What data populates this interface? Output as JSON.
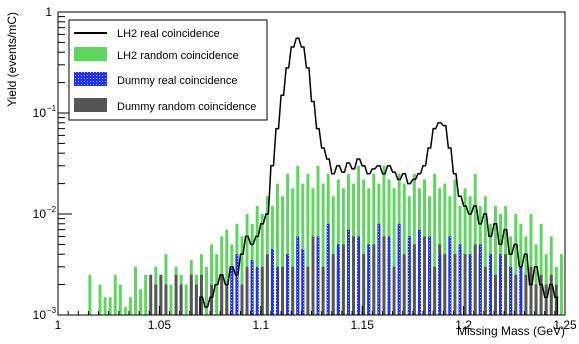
{
  "chart_data": {
    "type": "histogram",
    "xlabel": "Missing Mass (GeV)",
    "ylabel": "Yield (events/mC)",
    "xlim": [
      1.0,
      1.25
    ],
    "ylim": [
      0.001,
      1
    ],
    "yscale": "log",
    "bin_width": 0.00125,
    "x_ticks": [
      {
        "value": 1.0,
        "label": "1"
      },
      {
        "value": 1.05,
        "label": "1.05"
      },
      {
        "value": 1.1,
        "label": "1.1"
      },
      {
        "value": 1.15,
        "label": "1.15"
      },
      {
        "value": 1.2,
        "label": "1.2"
      },
      {
        "value": 1.25,
        "label": "1.25"
      }
    ],
    "y_ticks": [
      {
        "value": 0.001,
        "base": "10",
        "exp": "−3"
      },
      {
        "value": 0.01,
        "base": "10",
        "exp": "−2"
      },
      {
        "value": 0.1,
        "base": "10",
        "exp": "−1"
      },
      {
        "value": 1,
        "base": "1",
        "exp": ""
      }
    ],
    "legend": {
      "position": "top-left",
      "entries": [
        {
          "label": "LH2 real coincidence",
          "series": "lh2_real"
        },
        {
          "label": "LH2 random coincidence",
          "series": "lh2_random"
        },
        {
          "label": "Dummy real coincidence",
          "series": "dummy_real"
        },
        {
          "label": "Dummy random coincidence",
          "series": "dummy_random"
        }
      ]
    },
    "colors": {
      "lh2_random": "#5cd65c",
      "dummy_real": "#1f2fff",
      "dummy_random": "#555555",
      "lh2_real": "#000000"
    },
    "series": [
      {
        "name": "LH2 random coincidence",
        "key": "lh2_random",
        "style": "filled",
        "points": [
          [
            1.015,
            0.0025
          ],
          [
            1.02,
            0.002
          ],
          [
            1.0225,
            0.0015
          ],
          [
            1.025,
            0.0015
          ],
          [
            1.0275,
            0.0025
          ],
          [
            1.03,
            0.002
          ],
          [
            1.0325,
            0.0012
          ],
          [
            1.035,
            0.0015
          ],
          [
            1.0375,
            0.003
          ],
          [
            1.04,
            0.0018
          ],
          [
            1.0425,
            0.0025
          ],
          [
            1.045,
            0.0015
          ],
          [
            1.0475,
            0.003
          ],
          [
            1.05,
            0.0025
          ],
          [
            1.0525,
            0.004
          ],
          [
            1.055,
            0.002
          ],
          [
            1.0575,
            0.003
          ],
          [
            1.06,
            0.0025
          ],
          [
            1.0625,
            0.002
          ],
          [
            1.065,
            0.0035
          ],
          [
            1.0675,
            0.0025
          ],
          [
            1.07,
            0.004
          ],
          [
            1.0725,
            0.003
          ],
          [
            1.075,
            0.005
          ],
          [
            1.0775,
            0.004
          ],
          [
            1.08,
            0.006
          ],
          [
            1.0825,
            0.007
          ],
          [
            1.085,
            0.005
          ],
          [
            1.0875,
            0.008
          ],
          [
            1.09,
            0.006
          ],
          [
            1.0925,
            0.01
          ],
          [
            1.095,
            0.008
          ],
          [
            1.0975,
            0.012
          ],
          [
            1.1,
            0.01
          ],
          [
            1.1025,
            0.015
          ],
          [
            1.105,
            0.012
          ],
          [
            1.1075,
            0.02
          ],
          [
            1.11,
            0.015
          ],
          [
            1.1125,
            0.025
          ],
          [
            1.115,
            0.018
          ],
          [
            1.1175,
            0.03
          ],
          [
            1.12,
            0.02
          ],
          [
            1.1225,
            0.025
          ],
          [
            1.125,
            0.018
          ],
          [
            1.1275,
            0.03
          ],
          [
            1.13,
            0.02
          ],
          [
            1.1325,
            0.025
          ],
          [
            1.135,
            0.015
          ],
          [
            1.1375,
            0.022
          ],
          [
            1.14,
            0.018
          ],
          [
            1.1425,
            0.025
          ],
          [
            1.145,
            0.02
          ],
          [
            1.1475,
            0.03
          ],
          [
            1.15,
            0.022
          ],
          [
            1.1525,
            0.018
          ],
          [
            1.155,
            0.025
          ],
          [
            1.1575,
            0.02
          ],
          [
            1.16,
            0.03
          ],
          [
            1.1625,
            0.022
          ],
          [
            1.165,
            0.018
          ],
          [
            1.1675,
            0.025
          ],
          [
            1.17,
            0.02
          ],
          [
            1.1725,
            0.015
          ],
          [
            1.175,
            0.025
          ],
          [
            1.1775,
            0.018
          ],
          [
            1.18,
            0.022
          ],
          [
            1.1825,
            0.015
          ],
          [
            1.185,
            0.025
          ],
          [
            1.1875,
            0.018
          ],
          [
            1.19,
            0.02
          ],
          [
            1.1925,
            0.015
          ],
          [
            1.195,
            0.022
          ],
          [
            1.1975,
            0.012
          ],
          [
            1.2,
            0.018
          ],
          [
            1.2025,
            0.015
          ],
          [
            1.205,
            0.025
          ],
          [
            1.2075,
            0.012
          ],
          [
            1.21,
            0.015
          ],
          [
            1.2125,
            0.008
          ],
          [
            1.215,
            0.012
          ],
          [
            1.2175,
            0.01
          ],
          [
            1.22,
            0.012
          ],
          [
            1.2225,
            0.006
          ],
          [
            1.225,
            0.01
          ],
          [
            1.2275,
            0.008
          ],
          [
            1.23,
            0.006
          ],
          [
            1.2325,
            0.01
          ],
          [
            1.235,
            0.005
          ],
          [
            1.2375,
            0.008
          ],
          [
            1.24,
            0.004
          ],
          [
            1.2425,
            0.006
          ],
          [
            1.245,
            0.003
          ],
          [
            1.2475,
            0.004
          ]
        ]
      },
      {
        "name": "Dummy random coincidence",
        "key": "dummy_random",
        "style": "filled",
        "points": [
          [
            1.045,
            0.0025
          ],
          [
            1.0475,
            0.002
          ],
          [
            1.05,
            0.0025
          ],
          [
            1.0525,
            0.002
          ],
          [
            1.0575,
            0.0025
          ],
          [
            1.06,
            0.002
          ],
          [
            1.065,
            0.0025
          ],
          [
            1.0675,
            0.002
          ],
          [
            1.07,
            0.0025
          ],
          [
            1.075,
            0.002
          ],
          [
            1.08,
            0.0025
          ],
          [
            1.0825,
            0.002
          ],
          [
            1.085,
            0.003
          ],
          [
            1.0875,
            0.0025
          ],
          [
            1.09,
            0.002
          ],
          [
            1.0925,
            0.003
          ],
          [
            1.095,
            0.0025
          ],
          [
            1.1,
            0.003
          ],
          [
            1.1025,
            0.004
          ],
          [
            1.105,
            0.003
          ],
          [
            1.1075,
            0.0025
          ],
          [
            1.11,
            0.003
          ],
          [
            1.1125,
            0.004
          ],
          [
            1.115,
            0.003
          ],
          [
            1.1175,
            0.005
          ],
          [
            1.12,
            0.004
          ],
          [
            1.1225,
            0.003
          ],
          [
            1.125,
            0.006
          ],
          [
            1.1275,
            0.004
          ],
          [
            1.13,
            0.003
          ],
          [
            1.1325,
            0.005
          ],
          [
            1.135,
            0.004
          ],
          [
            1.1375,
            0.003
          ],
          [
            1.14,
            0.005
          ],
          [
            1.1425,
            0.004
          ],
          [
            1.145,
            0.006
          ],
          [
            1.1475,
            0.003
          ],
          [
            1.15,
            0.004
          ],
          [
            1.1525,
            0.003
          ],
          [
            1.155,
            0.005
          ],
          [
            1.1575,
            0.004
          ],
          [
            1.16,
            0.006
          ],
          [
            1.1625,
            0.004
          ],
          [
            1.165,
            0.003
          ],
          [
            1.1675,
            0.005
          ],
          [
            1.17,
            0.004
          ],
          [
            1.1725,
            0.003
          ],
          [
            1.175,
            0.005
          ],
          [
            1.1775,
            0.004
          ],
          [
            1.18,
            0.006
          ],
          [
            1.1825,
            0.004
          ],
          [
            1.185,
            0.003
          ],
          [
            1.1875,
            0.005
          ],
          [
            1.19,
            0.004
          ],
          [
            1.1925,
            0.003
          ],
          [
            1.195,
            0.004
          ],
          [
            1.2,
            0.004
          ],
          [
            1.2025,
            0.003
          ],
          [
            1.205,
            0.005
          ],
          [
            1.2075,
            0.004
          ],
          [
            1.21,
            0.003
          ],
          [
            1.2125,
            0.004
          ],
          [
            1.215,
            0.0025
          ],
          [
            1.2175,
            0.003
          ],
          [
            1.22,
            0.004
          ],
          [
            1.2225,
            0.003
          ],
          [
            1.225,
            0.0025
          ],
          [
            1.2275,
            0.003
          ],
          [
            1.23,
            0.0025
          ],
          [
            1.2325,
            0.003
          ],
          [
            1.235,
            0.002
          ],
          [
            1.2375,
            0.0025
          ],
          [
            1.24,
            0.002
          ],
          [
            1.2425,
            0.0025
          ],
          [
            1.245,
            0.002
          ]
        ]
      },
      {
        "name": "Dummy real coincidence",
        "key": "dummy_real",
        "style": "filled",
        "points": [
          [
            1.085,
            0.003
          ],
          [
            1.0875,
            0.004
          ],
          [
            1.095,
            0.0035
          ],
          [
            1.0975,
            0.003
          ],
          [
            1.105,
            0.0045
          ],
          [
            1.1075,
            0.003
          ],
          [
            1.1125,
            0.004
          ],
          [
            1.1175,
            0.006
          ],
          [
            1.12,
            0.0045
          ],
          [
            1.1275,
            0.006
          ],
          [
            1.1325,
            0.008
          ],
          [
            1.1375,
            0.005
          ],
          [
            1.1425,
            0.007
          ],
          [
            1.1475,
            0.006
          ],
          [
            1.1525,
            0.005
          ],
          [
            1.1575,
            0.008
          ],
          [
            1.1625,
            0.006
          ],
          [
            1.1675,
            0.008
          ],
          [
            1.1725,
            0.006
          ],
          [
            1.1775,
            0.007
          ],
          [
            1.1825,
            0.006
          ],
          [
            1.1875,
            0.004
          ],
          [
            1.1925,
            0.006
          ],
          [
            1.1975,
            0.005
          ],
          [
            1.2025,
            0.004
          ],
          [
            1.2075,
            0.005
          ],
          [
            1.2125,
            0.004
          ],
          [
            1.2175,
            0.004
          ],
          [
            1.2225,
            0.003
          ],
          [
            1.2275,
            0.003
          ]
        ]
      },
      {
        "name": "LH2 real coincidence",
        "key": "lh2_real",
        "style": "step",
        "points": [
          [
            1.07,
            0.0015
          ],
          [
            1.0725,
            0.0012
          ],
          [
            1.075,
            0.0015
          ],
          [
            1.0775,
            0.002
          ],
          [
            1.08,
            0.0025
          ],
          [
            1.0825,
            0.002
          ],
          [
            1.085,
            0.003
          ],
          [
            1.0875,
            0.0025
          ],
          [
            1.09,
            0.004
          ],
          [
            1.0925,
            0.006
          ],
          [
            1.095,
            0.005
          ],
          [
            1.0975,
            0.006
          ],
          [
            1.1,
            0.008
          ],
          [
            1.1025,
            0.01
          ],
          [
            1.105,
            0.03
          ],
          [
            1.1075,
            0.07
          ],
          [
            1.11,
            0.15
          ],
          [
            1.1125,
            0.28
          ],
          [
            1.115,
            0.45
          ],
          [
            1.1175,
            0.55
          ],
          [
            1.12,
            0.45
          ],
          [
            1.1225,
            0.28
          ],
          [
            1.125,
            0.13
          ],
          [
            1.1275,
            0.07
          ],
          [
            1.13,
            0.045
          ],
          [
            1.1325,
            0.035
          ],
          [
            1.135,
            0.025
          ],
          [
            1.1375,
            0.03
          ],
          [
            1.14,
            0.026
          ],
          [
            1.1425,
            0.032
          ],
          [
            1.145,
            0.028
          ],
          [
            1.1475,
            0.035
          ],
          [
            1.15,
            0.03
          ],
          [
            1.1525,
            0.025
          ],
          [
            1.155,
            0.028
          ],
          [
            1.1575,
            0.03
          ],
          [
            1.16,
            0.025
          ],
          [
            1.1625,
            0.03
          ],
          [
            1.165,
            0.026
          ],
          [
            1.1675,
            0.022
          ],
          [
            1.17,
            0.025
          ],
          [
            1.1725,
            0.02
          ],
          [
            1.175,
            0.022
          ],
          [
            1.1775,
            0.025
          ],
          [
            1.18,
            0.03
          ],
          [
            1.1825,
            0.045
          ],
          [
            1.185,
            0.07
          ],
          [
            1.1875,
            0.08
          ],
          [
            1.19,
            0.075
          ],
          [
            1.1925,
            0.045
          ],
          [
            1.195,
            0.025
          ],
          [
            1.1975,
            0.015
          ],
          [
            1.2,
            0.012
          ],
          [
            1.2025,
            0.01
          ],
          [
            1.205,
            0.012
          ],
          [
            1.2075,
            0.008
          ],
          [
            1.21,
            0.01
          ],
          [
            1.2125,
            0.006
          ],
          [
            1.215,
            0.008
          ],
          [
            1.2175,
            0.005
          ],
          [
            1.22,
            0.007
          ],
          [
            1.2225,
            0.004
          ],
          [
            1.225,
            0.005
          ],
          [
            1.2275,
            0.003
          ],
          [
            1.23,
            0.004
          ],
          [
            1.2325,
            0.002
          ],
          [
            1.235,
            0.003
          ],
          [
            1.2375,
            0.002
          ],
          [
            1.24,
            0.0015
          ],
          [
            1.2425,
            0.002
          ],
          [
            1.245,
            0.0015
          ]
        ]
      }
    ]
  }
}
